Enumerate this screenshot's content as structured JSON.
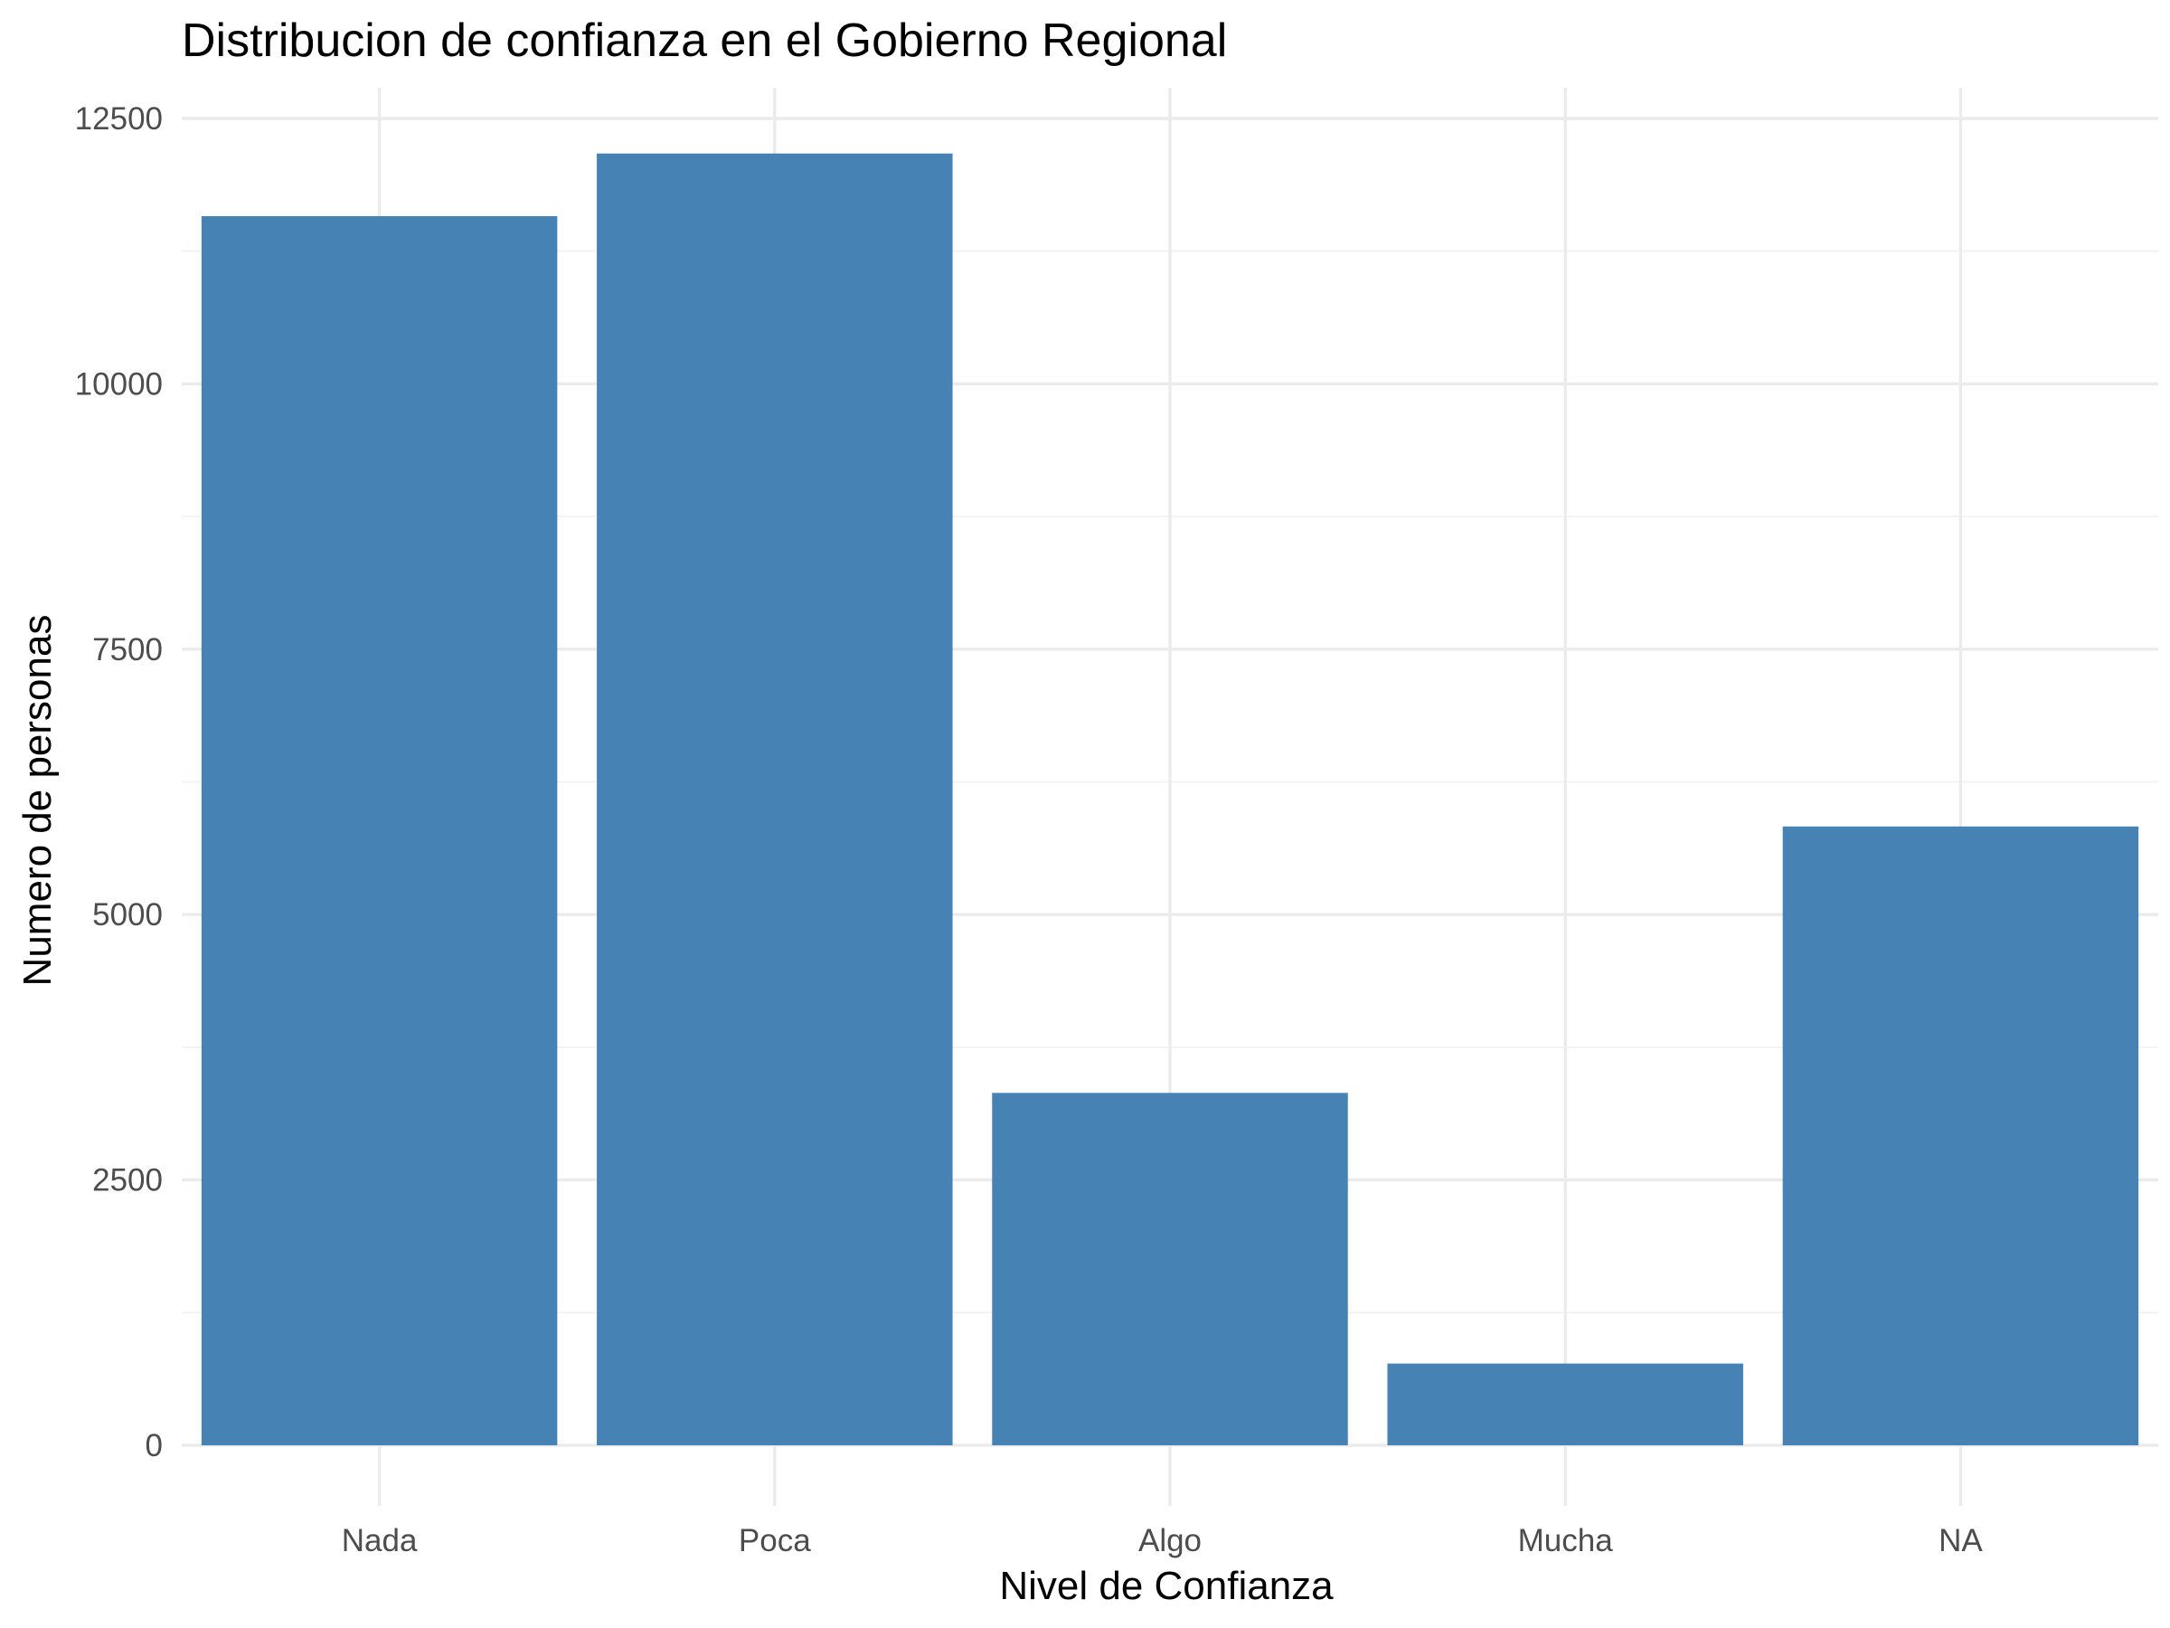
{
  "chart_data": {
    "type": "bar",
    "title": "Distribucion de confianza en el Gobierno Regional",
    "xlabel": "Nivel de Confianza",
    "ylabel": "Numero de personas",
    "categories": [
      "Nada",
      "Poca",
      "Algo",
      "Mucha",
      "NA"
    ],
    "values": [
      11580,
      12170,
      3320,
      770,
      5830
    ],
    "ylim": [
      0,
      12500
    ],
    "yticks": [
      0,
      2500,
      5000,
      7500,
      10000,
      12500
    ],
    "ytick_labels": [
      "0",
      "2500",
      "5000",
      "7500",
      "10000",
      "12500"
    ],
    "grid": true,
    "bar_color": "#4682B4",
    "legend": "none"
  }
}
